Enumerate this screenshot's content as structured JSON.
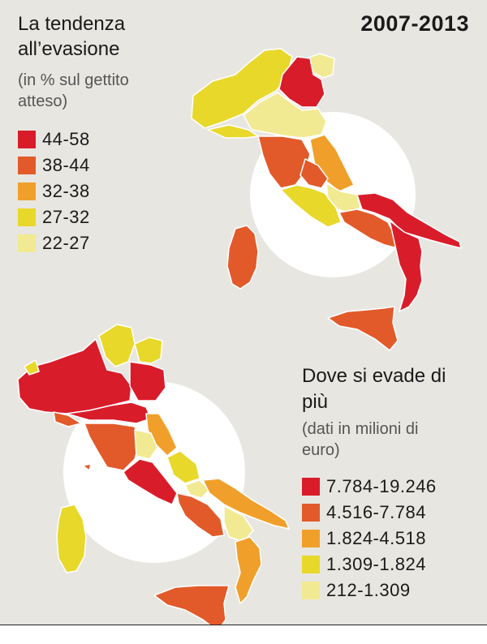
{
  "map1": {
    "title": "La tendenza all’evasione",
    "subtitle": "(in % sul gettito atteso)",
    "period": "2007-2013",
    "legend": [
      {
        "label": "44-58",
        "color": "#d91c2a"
      },
      {
        "label": "38-44",
        "color": "#e25a2a"
      },
      {
        "label": "32-38",
        "color": "#f0a02a"
      },
      {
        "label": "27-32",
        "color": "#e8d82a"
      },
      {
        "label": "22-27",
        "color": "#f2ea92"
      }
    ]
  },
  "map2": {
    "title": "Dove si evade di più",
    "subtitle": "(dati in milioni di euro)",
    "legend": [
      {
        "label": "7.784-19.246",
        "color": "#d91c2a"
      },
      {
        "label": "4.516-7.784",
        "color": "#e25a2a"
      },
      {
        "label": "1.824-4.518",
        "color": "#f0a02a"
      },
      {
        "label": "1.309-1.824",
        "color": "#e8d82a"
      },
      {
        "label": "212-1.309",
        "color": "#f2ea92"
      }
    ]
  }
}
